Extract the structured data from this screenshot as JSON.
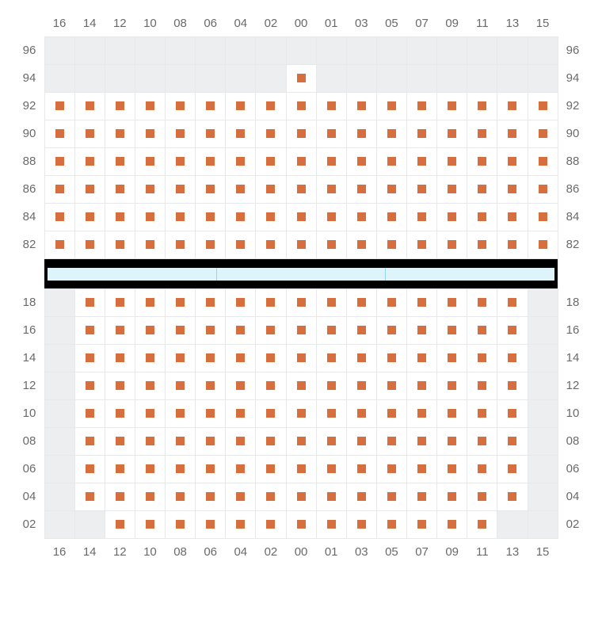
{
  "colors": {
    "seat": "#d66e3d",
    "cell_border": "#e7e8e9",
    "empty_cell": "#eceeef",
    "label": "#6a6a6a",
    "stage_fill": "#def4fb",
    "stage_border": "#000000",
    "stage_divider": "#9ad6ea",
    "background": "#ffffff"
  },
  "columns": [
    "16",
    "14",
    "12",
    "10",
    "08",
    "06",
    "04",
    "02",
    "00",
    "01",
    "03",
    "05",
    "07",
    "09",
    "11",
    "13",
    "15"
  ],
  "stage_segments": 3,
  "upper": {
    "row_labels": [
      "96",
      "94",
      "92",
      "90",
      "88",
      "86",
      "84",
      "82"
    ],
    "rows": [
      {
        "label": "96",
        "cells": "0 0 0 0 0 0 0 0 0 0 0 0 0 0 0 0 0"
      },
      {
        "label": "94",
        "cells": "0 0 0 0 0 0 0 0 1 0 0 0 0 0 0 0 0"
      },
      {
        "label": "92",
        "cells": "1 1 1 1 1 1 1 1 1 1 1 1 1 1 1 1 1"
      },
      {
        "label": "90",
        "cells": "1 1 1 1 1 1 1 1 1 1 1 1 1 1 1 1 1"
      },
      {
        "label": "88",
        "cells": "1 1 1 1 1 1 1 1 1 1 1 1 1 1 1 1 1"
      },
      {
        "label": "86",
        "cells": "1 1 1 1 1 1 1 1 1 1 1 1 1 1 1 1 1"
      },
      {
        "label": "84",
        "cells": "1 1 1 1 1 1 1 1 1 1 1 1 1 1 1 1 1"
      },
      {
        "label": "82",
        "cells": "1 1 1 1 1 1 1 1 1 1 1 1 1 1 1 1 1"
      }
    ]
  },
  "lower": {
    "row_labels": [
      "18",
      "16",
      "14",
      "12",
      "10",
      "08",
      "06",
      "04",
      "02"
    ],
    "rows": [
      {
        "label": "18",
        "cells": "0 1 1 1 1 1 1 1 1 1 1 1 1 1 1 1 0"
      },
      {
        "label": "16",
        "cells": "0 1 1 1 1 1 1 1 1 1 1 1 1 1 1 1 0"
      },
      {
        "label": "14",
        "cells": "0 1 1 1 1 1 1 1 1 1 1 1 1 1 1 1 0"
      },
      {
        "label": "12",
        "cells": "0 1 1 1 1 1 1 1 1 1 1 1 1 1 1 1 0"
      },
      {
        "label": "10",
        "cells": "0 1 1 1 1 1 1 1 1 1 1 1 1 1 1 1 0"
      },
      {
        "label": "08",
        "cells": "0 1 1 1 1 1 1 1 1 1 1 1 1 1 1 1 0"
      },
      {
        "label": "06",
        "cells": "0 1 1 1 1 1 1 1 1 1 1 1 1 1 1 1 0"
      },
      {
        "label": "04",
        "cells": "0 1 1 1 1 1 1 1 1 1 1 1 1 1 1 1 0"
      },
      {
        "label": "02",
        "cells": "0 0 1 1 1 1 1 1 1 1 1 1 1 1 1 0 0"
      }
    ]
  }
}
